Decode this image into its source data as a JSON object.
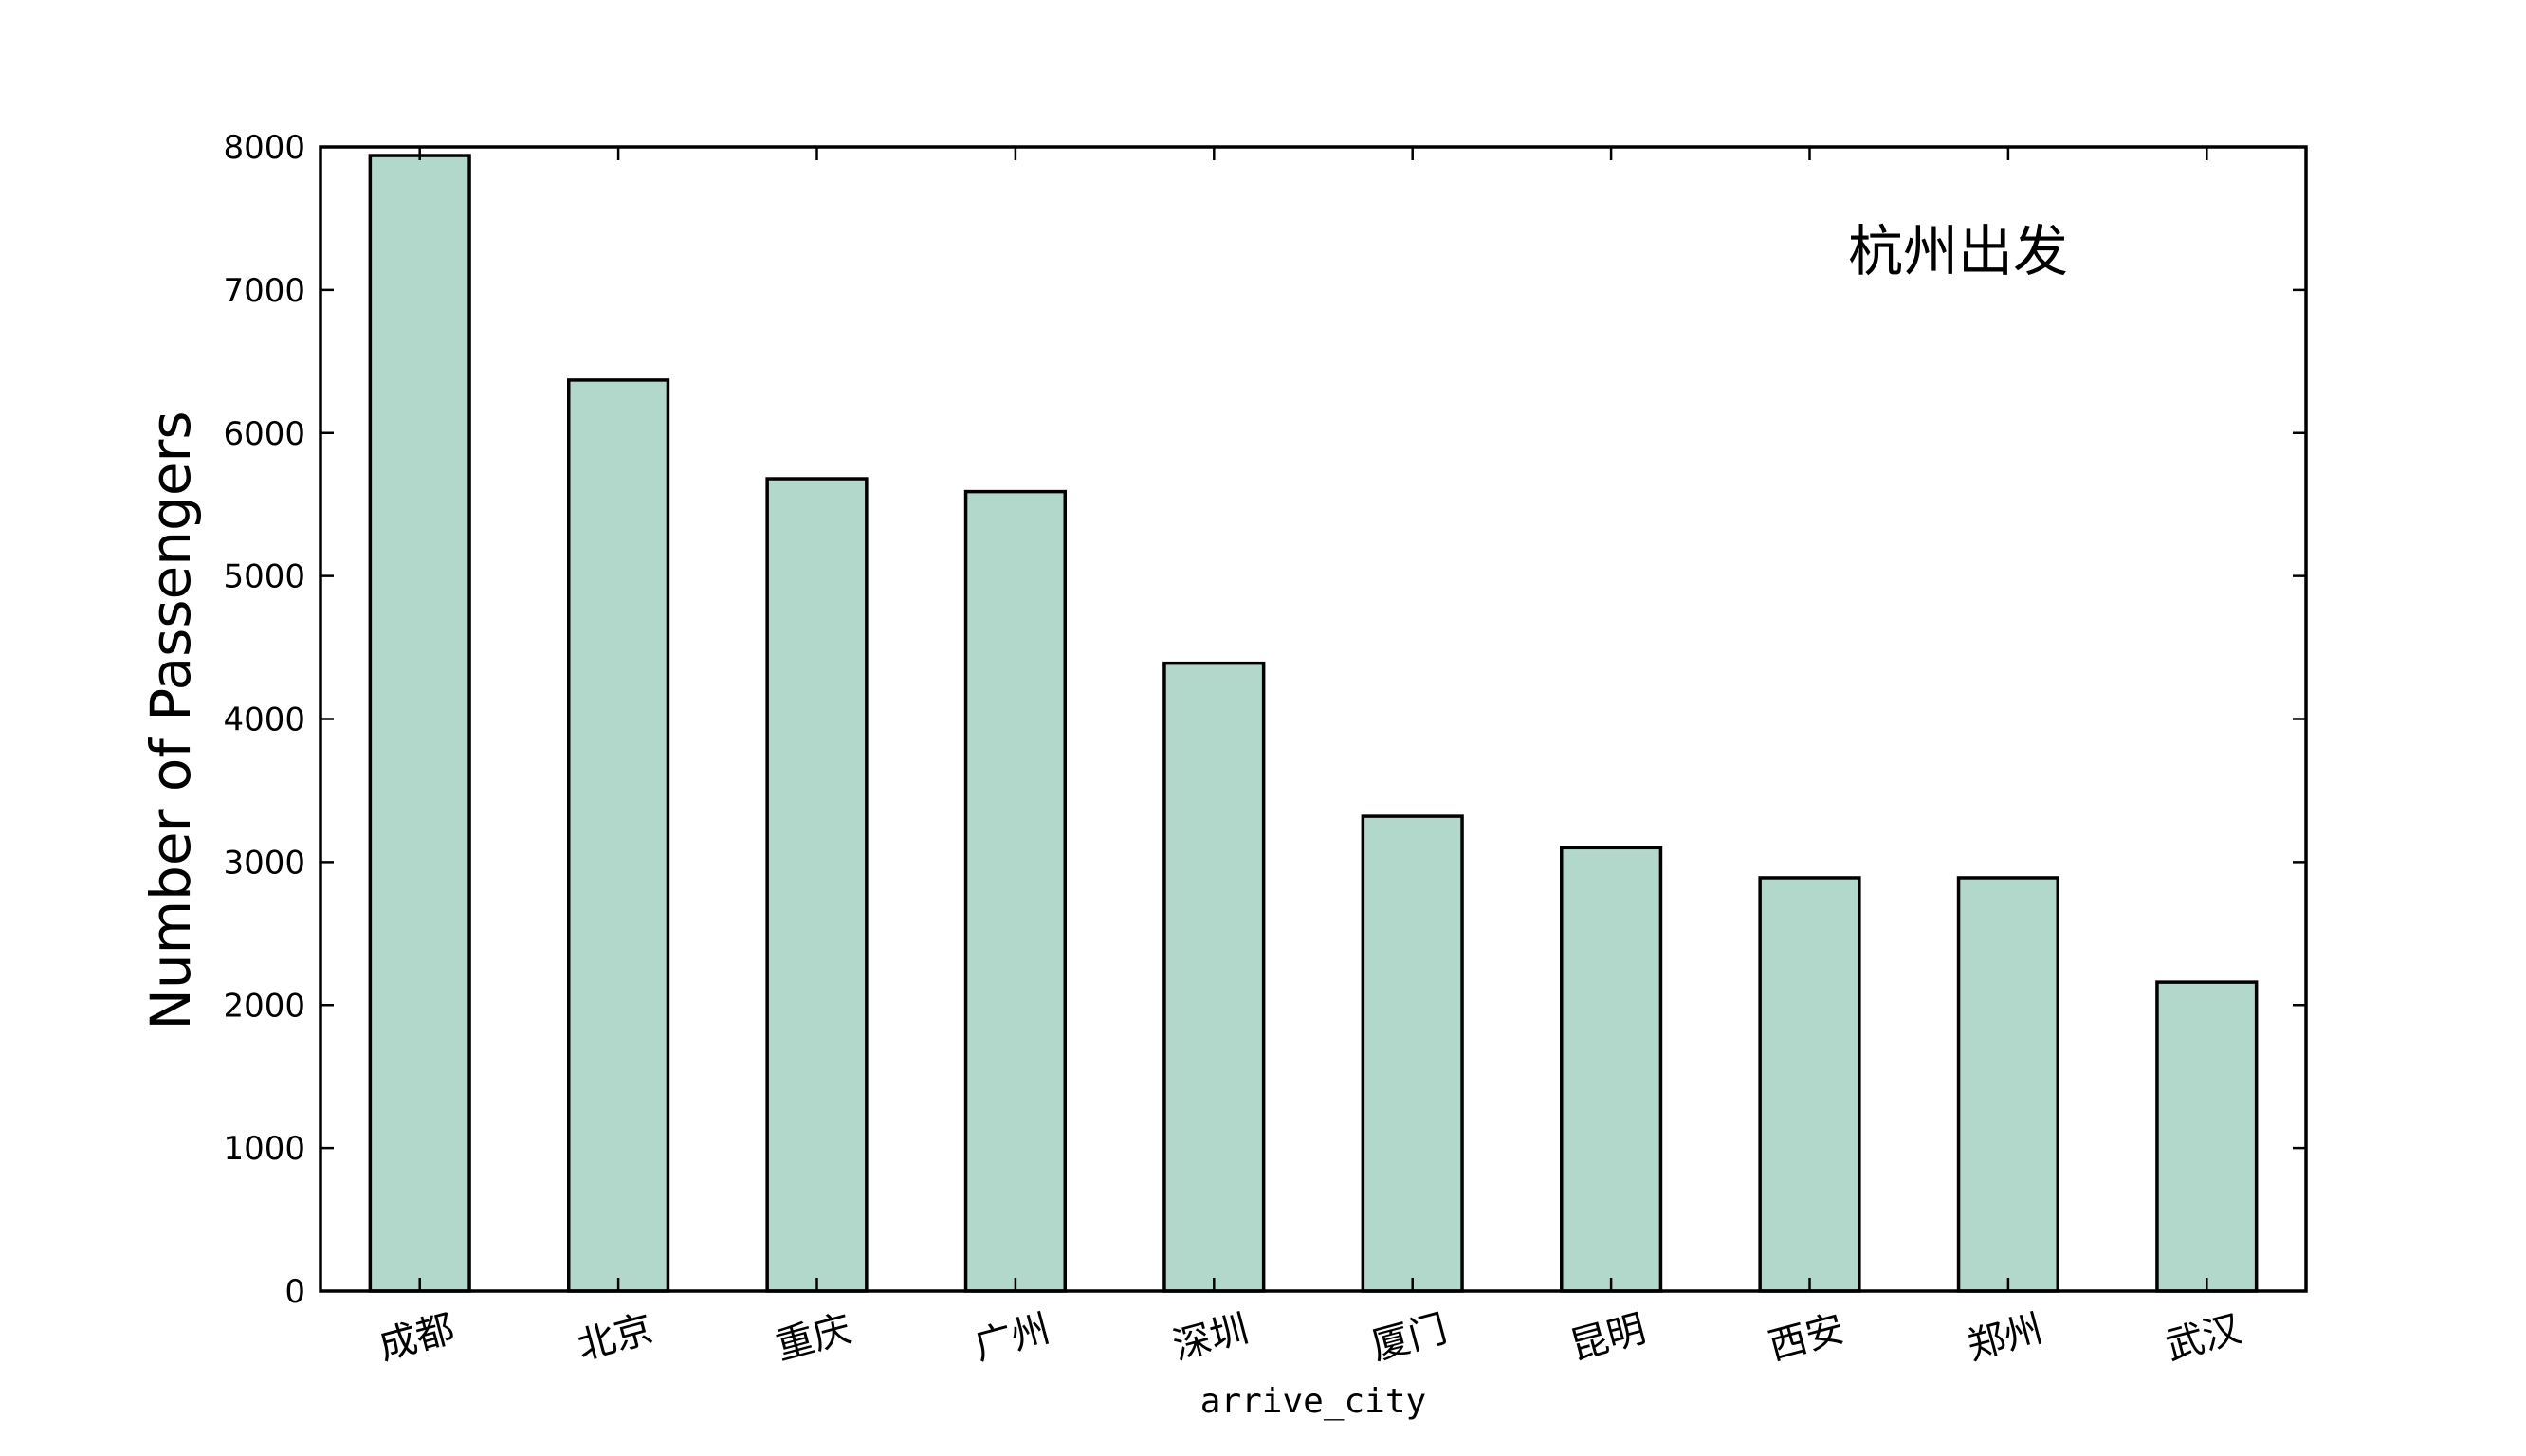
{
  "chart_data": {
    "type": "bar",
    "categories": [
      "成都",
      "北京",
      "重庆",
      "广州",
      "深圳",
      "厦门",
      "昆明",
      "西安",
      "郑州",
      "武汉"
    ],
    "values": [
      7940,
      6370,
      5680,
      5590,
      4390,
      3320,
      3100,
      2890,
      2890,
      2160
    ],
    "xlabel": "arrive_city",
    "ylabel": "Number of Passengers",
    "annotation": "杭州出发",
    "ylim": [
      0,
      8000
    ],
    "yticks": [
      0,
      1000,
      2000,
      3000,
      4000,
      5000,
      6000,
      7000,
      8000
    ],
    "grid": false,
    "legend": "none",
    "bar_color": "#b2d8cb",
    "edge_color": "#000000"
  }
}
